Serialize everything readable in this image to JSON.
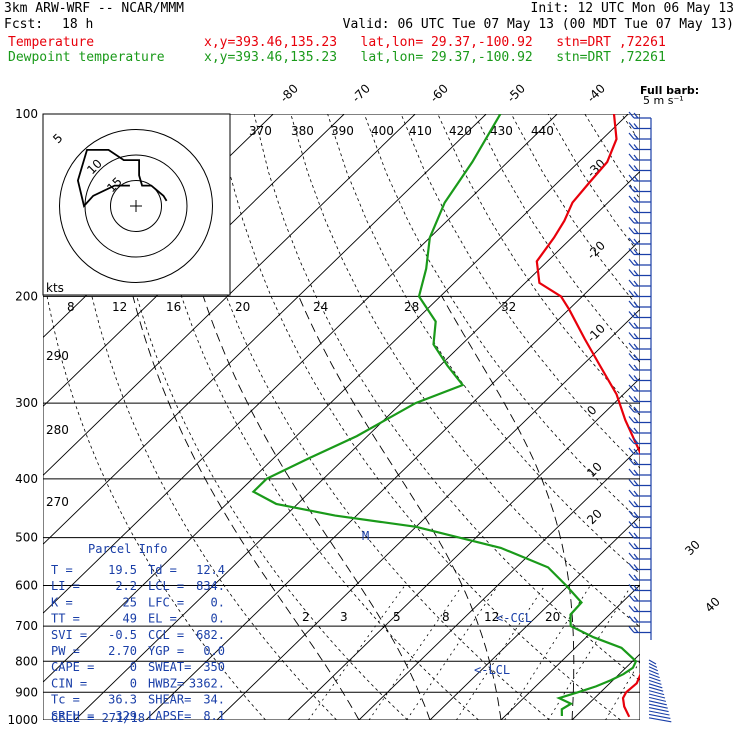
{
  "header": {
    "model": "3km ARW-WRF -- NCAR/MMM",
    "init": "Init: 12 UTC Mon 06 May 13",
    "fcst_label": "Fcst:",
    "fcst_value": "18 h",
    "valid": "Valid: 06 UTC Tue 07 May 13 (00 MDT Tue 07 May 13)",
    "temperature_label": "Temperature",
    "dewpoint_label": "Dewpoint temperature",
    "location": "x,y=393.46,135.23   lat,lon= 29.37,-100.92   stn=DRT ,72261"
  },
  "barb_legend": {
    "line1": "Full barb:",
    "line2": "5 m s⁻¹"
  },
  "hodograph": {
    "kts_label": "kts",
    "rings": [
      "5",
      "10",
      "15"
    ],
    "speed_ticks": [
      "8",
      "12",
      "16",
      "20",
      "24",
      "28",
      "32"
    ],
    "theta_labels_top": [
      "370",
      "380",
      "390",
      "400",
      "410",
      "420",
      "430",
      "440"
    ],
    "theta_labels_left": [
      "290",
      "280",
      "270"
    ]
  },
  "parcel_info": {
    "title": "Parcel Info",
    "rows": [
      {
        "a": "T  =",
        "av": "19.5",
        "b": "Td =",
        "bv": "12.4"
      },
      {
        "a": "LI =",
        "av": "2.2",
        "b": "LCL =",
        "bv": "834."
      },
      {
        "a": "K  =",
        "av": "25",
        "b": "LFC =",
        "bv": "0."
      },
      {
        "a": "TT =",
        "av": "49",
        "b": "EL  =",
        "bv": "0."
      },
      {
        "a": "SVI =",
        "av": "-0.5",
        "b": "CCL =",
        "bv": "682."
      },
      {
        "a": "PW =",
        "av": "2.70",
        "b": "YGP =",
        "bv": "0.0"
      },
      {
        "a": "CAPE =",
        "av": "0",
        "b": "SWEAT=",
        "bv": "350"
      },
      {
        "a": "CIN =",
        "av": "0",
        "b": "HWBZ=",
        "bv": "3362."
      },
      {
        "a": "Tc =",
        "av": "36.3",
        "b": "SHEAR=",
        "bv": "34."
      },
      {
        "a": "SREH =",
        "av": "329",
        "b": "LAPSE=",
        "bv": "8.1"
      }
    ],
    "cell": "CELL = 271/18"
  },
  "annotations": {
    "ccl": "<-CCL",
    "lcl": "<-LCL",
    "m_mark": "M"
  },
  "chart_data": {
    "type": "line",
    "title": "",
    "xlabel": "",
    "ylabel": "",
    "y_scale": "log",
    "ylim": [
      1000,
      100
    ],
    "isobars": [
      100,
      200,
      300,
      400,
      500,
      600,
      700,
      800,
      900,
      1000
    ],
    "isotherm_labels": [
      "-80",
      "-70",
      "-60",
      "-50",
      "-40",
      "-30",
      "-20",
      "-10",
      "0",
      "10",
      "20",
      "30",
      "40"
    ],
    "mixing_ratio_labels": [
      "2",
      "3",
      "5",
      "8",
      "12",
      "20"
    ],
    "series": [
      {
        "name": "Temperature",
        "color": "#e8000b",
        "pressure": [
          988,
          950,
          920,
          900,
          870,
          840,
          800,
          760,
          730,
          700,
          680,
          640,
          600,
          560,
          520,
          480,
          440,
          400,
          360,
          320,
          290,
          260,
          235,
          210,
          200,
          190,
          175,
          160,
          150,
          140,
          130,
          120,
          110,
          100
        ],
        "value": [
          27.6,
          25.4,
          24.0,
          23.6,
          23.8,
          23.0,
          27.0,
          27.5,
          25.5,
          23.3,
          21.5,
          18.5,
          15.2,
          11.8,
          8.5,
          4.7,
          0.4,
          -4.4,
          -9.5,
          -16.0,
          -21.0,
          -27.5,
          -33.5,
          -40.0,
          -43.0,
          -48.0,
          -51.5,
          -52.5,
          -53.5,
          -55.0,
          -55.5,
          -56.0,
          -58.0,
          -62.0
        ]
      },
      {
        "name": "Dewpoint temperature",
        "color": "#1a9a1a",
        "pressure": [
          985,
          960,
          940,
          920,
          900,
          880,
          860,
          840,
          820,
          800,
          760,
          730,
          700,
          670,
          640,
          600,
          560,
          520,
          480,
          460,
          440,
          420,
          400,
          370,
          340,
          300,
          280,
          260,
          240,
          220,
          200,
          180,
          160,
          140,
          120,
          100
        ],
        "value": [
          18.0,
          17.0,
          17.5,
          15.0,
          16.8,
          18.5,
          19.7,
          20.6,
          21.0,
          20.5,
          16.5,
          11.0,
          6.2,
          4.5,
          4.3,
          -0.3,
          -5.5,
          -15.0,
          -30.0,
          -43.0,
          -53.0,
          -58.0,
          -58.0,
          -55.0,
          -51.5,
          -48.0,
          -44.0,
          -49.0,
          -54.0,
          -57.0,
          -63.0,
          -66.0,
          -70.0,
          -73.0,
          -75.0,
          -78.0
        ]
      }
    ],
    "hodograph": {
      "u_kts": [
        -2,
        -7,
        -14,
        -17,
        -19,
        -16,
        -9,
        -4,
        1,
        1,
        2,
        5,
        7,
        9,
        10
      ],
      "v_kts": [
        4,
        4,
        2,
        0,
        5,
        11,
        11,
        9,
        9,
        6,
        4,
        4,
        3,
        2,
        1
      ]
    },
    "wind_barbs_shown": true
  }
}
